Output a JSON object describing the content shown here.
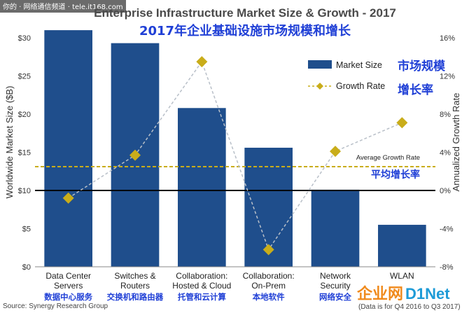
{
  "watermark": "你的 · 网络通信频道 · tele.it168.com",
  "title_en": "Enterprise Infrastructure Market Size & Growth - 2017",
  "title_cn": "2017年企业基础设施市场规模和增长",
  "source": "Source: Synergy Research Group",
  "data_note": "(Data is for Q4 2016 to Q3 2017)",
  "logo": {
    "cn": "企业网",
    "en": "D1Net"
  },
  "avg_label_en": "Average Growth Rate",
  "avg_label_cn": "平均增长率",
  "colors": {
    "bar": "#1f4e8c",
    "growth": "#c9ad1a",
    "avg_line": "#c9ad1a",
    "cn_text": "#1f3fd6"
  },
  "chart_data": {
    "type": "bar",
    "categories": [
      [
        "Data Center",
        "Servers"
      ],
      [
        "Switches &",
        "Routers"
      ],
      [
        "Collaboration:",
        "Hosted & Cloud"
      ],
      [
        "Collaboration:",
        "On-Prem"
      ],
      [
        "Network",
        "Security"
      ],
      [
        "WLAN"
      ]
    ],
    "categories_cn": [
      "数据中心服务",
      "交换机和路由器",
      "托管和云计算",
      "本地软件",
      "网络安全",
      ""
    ],
    "series": [
      {
        "name": "Market Size",
        "name_cn": "市场规模",
        "axis": "left",
        "kind": "bar",
        "values": [
          31.0,
          29.3,
          20.8,
          15.6,
          10.1,
          5.5
        ]
      },
      {
        "name": "Growth Rate",
        "name_cn": "增长率",
        "axis": "right",
        "kind": "line-diamond",
        "values": [
          -0.8,
          3.7,
          13.5,
          -6.2,
          4.1,
          7.1
        ]
      }
    ],
    "average_growth_rate": 2.5,
    "ylabel": "Worldwide Market Size ($B)",
    "y2label": "Annualized Growth Rate",
    "ylim": [
      0,
      30
    ],
    "y2lim": [
      -8,
      16
    ],
    "yticks": [
      "$0",
      "$5",
      "$10",
      "$15",
      "$20",
      "$25",
      "$30"
    ],
    "y2ticks": [
      "-8%",
      "-4%",
      "0%",
      "4%",
      "8%",
      "12%",
      "16%"
    ],
    "legend_position": "top-right",
    "grid": false
  }
}
